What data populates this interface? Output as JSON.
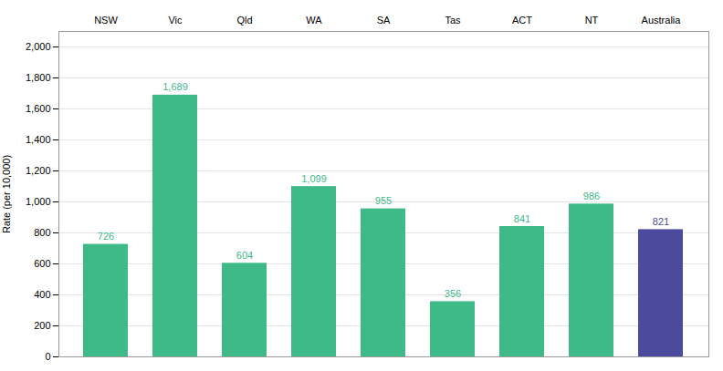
{
  "chart_data": {
    "type": "bar",
    "categories": [
      "NSW",
      "Vic",
      "Qld",
      "WA",
      "SA",
      "Tas",
      "ACT",
      "NT",
      "Australia"
    ],
    "values": [
      726,
      1689,
      604,
      1099,
      955,
      356,
      841,
      986,
      821
    ],
    "value_labels": [
      "726",
      "1,689",
      "604",
      "1,099",
      "955",
      "356",
      "841",
      "986",
      "821"
    ],
    "colors": [
      "#3dba87",
      "#3dba87",
      "#3dba87",
      "#3dba87",
      "#3dba87",
      "#3dba87",
      "#3dba87",
      "#3dba87",
      "#4b4a9c"
    ],
    "ylabel": "Rate (per 10,000)",
    "ylim": [
      0,
      2100
    ],
    "yticks": [
      0,
      200,
      400,
      600,
      800,
      {
        "value": 1000,
        "label": "1,000"
      },
      {
        "value": 1200,
        "label": "1,200"
      },
      {
        "value": 1400,
        "label": "1,400"
      },
      {
        "value": 1600,
        "label": "1,600"
      },
      {
        "value": 1800,
        "label": "1,800"
      },
      {
        "value": 2000,
        "label": "2,000"
      }
    ],
    "grid": true,
    "data_labels": true
  }
}
